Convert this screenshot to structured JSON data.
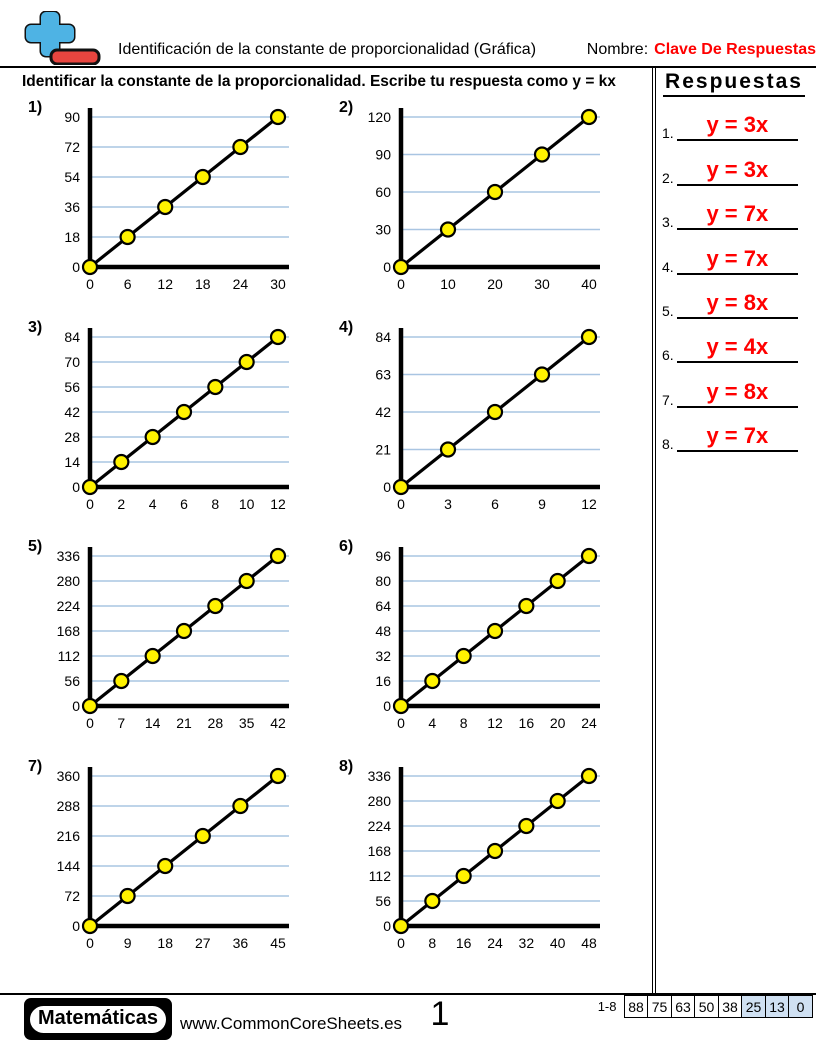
{
  "header": {
    "title": "Identificación de la constante de proporcionalidad (Gráfica)",
    "name_label": "Nombre:",
    "name_value": "Clave De Respuestas",
    "name_value_color": "#ff0000"
  },
  "instruction": "Identificar la constante de la proporcionalidad. Escribe tu respuesta como y = kx",
  "answers": {
    "heading": "Respuestas",
    "color": "#ff0000",
    "items": [
      {
        "number": "1.",
        "value": "y = 3x"
      },
      {
        "number": "2.",
        "value": "y = 3x"
      },
      {
        "number": "3.",
        "value": "y = 7x"
      },
      {
        "number": "4.",
        "value": "y = 7x"
      },
      {
        "number": "5.",
        "value": "y = 8x"
      },
      {
        "number": "6.",
        "value": "y = 4x"
      },
      {
        "number": "7.",
        "value": "y = 8x"
      },
      {
        "number": "8.",
        "value": "y = 7x"
      }
    ]
  },
  "chart_data": [
    {
      "type": "line",
      "number": "1)",
      "k": 3,
      "x": [
        0,
        6,
        12,
        18,
        24,
        30
      ],
      "y": [
        0,
        18,
        36,
        54,
        72,
        90
      ],
      "x_ticks": [
        0,
        6,
        12,
        18,
        24,
        30
      ],
      "y_ticks": [
        0,
        18,
        36,
        54,
        72,
        90
      ],
      "xlim": [
        0,
        30
      ],
      "ylim": [
        0,
        90
      ],
      "grid": "horizontal"
    },
    {
      "type": "line",
      "number": "2)",
      "k": 3,
      "x": [
        0,
        10,
        20,
        30,
        40
      ],
      "y": [
        0,
        30,
        60,
        90,
        120
      ],
      "x_ticks": [
        0,
        10,
        20,
        30,
        40
      ],
      "y_ticks": [
        0,
        30,
        60,
        90,
        120
      ],
      "xlim": [
        0,
        40
      ],
      "ylim": [
        0,
        120
      ],
      "grid": "horizontal"
    },
    {
      "type": "line",
      "number": "3)",
      "k": 7,
      "x": [
        0,
        2,
        4,
        6,
        8,
        10,
        12
      ],
      "y": [
        0,
        14,
        28,
        42,
        56,
        70,
        84
      ],
      "x_ticks": [
        0,
        2,
        4,
        6,
        8,
        10,
        12
      ],
      "y_ticks": [
        0,
        14,
        28,
        42,
        56,
        70,
        84
      ],
      "xlim": [
        0,
        12
      ],
      "ylim": [
        0,
        84
      ],
      "grid": "horizontal"
    },
    {
      "type": "line",
      "number": "4)",
      "k": 7,
      "x": [
        0,
        3,
        6,
        9,
        12
      ],
      "y": [
        0,
        21,
        42,
        63,
        84
      ],
      "x_ticks": [
        0,
        3,
        6,
        9,
        12
      ],
      "y_ticks": [
        0,
        21,
        42,
        63,
        84
      ],
      "xlim": [
        0,
        12
      ],
      "ylim": [
        0,
        84
      ],
      "grid": "horizontal"
    },
    {
      "type": "line",
      "number": "5)",
      "k": 8,
      "x": [
        0,
        7,
        14,
        21,
        28,
        35,
        42
      ],
      "y": [
        0,
        56,
        112,
        168,
        224,
        280,
        336
      ],
      "x_ticks": [
        0,
        7,
        14,
        21,
        28,
        35,
        42
      ],
      "y_ticks": [
        0,
        56,
        112,
        168,
        224,
        280,
        336
      ],
      "xlim": [
        0,
        42
      ],
      "ylim": [
        0,
        336
      ],
      "grid": "horizontal"
    },
    {
      "type": "line",
      "number": "6)",
      "k": 4,
      "x": [
        0,
        4,
        8,
        12,
        16,
        20,
        24
      ],
      "y": [
        0,
        16,
        32,
        48,
        64,
        80,
        96
      ],
      "x_ticks": [
        0,
        4,
        8,
        12,
        16,
        20,
        24
      ],
      "y_ticks": [
        0,
        16,
        32,
        48,
        64,
        80,
        96
      ],
      "xlim": [
        0,
        24
      ],
      "ylim": [
        0,
        96
      ],
      "grid": "horizontal"
    },
    {
      "type": "line",
      "number": "7)",
      "k": 8,
      "x": [
        0,
        9,
        18,
        27,
        36,
        45
      ],
      "y": [
        0,
        72,
        144,
        216,
        288,
        360
      ],
      "x_ticks": [
        0,
        9,
        18,
        27,
        36,
        45
      ],
      "y_ticks": [
        0,
        72,
        144,
        216,
        288,
        360
      ],
      "xlim": [
        0,
        45
      ],
      "ylim": [
        0,
        360
      ],
      "grid": "horizontal"
    },
    {
      "type": "line",
      "number": "8)",
      "k": 7,
      "x": [
        0,
        8,
        16,
        24,
        32,
        40,
        48
      ],
      "y": [
        0,
        56,
        112,
        168,
        224,
        280,
        336
      ],
      "x_ticks": [
        0,
        8,
        16,
        24,
        32,
        40,
        48
      ],
      "y_ticks": [
        0,
        56,
        112,
        168,
        224,
        280,
        336
      ],
      "xlim": [
        0,
        48
      ],
      "ylim": [
        0,
        336
      ],
      "grid": "horizontal"
    }
  ],
  "style": {
    "grid_color": "#a9c5e2",
    "dot_fill": "#fff200",
    "dot_stroke": "#000000",
    "line_color": "#000000",
    "axis_color": "#000000",
    "logo_plus_color": "#4eb3e4",
    "logo_minus_color": "#e8453f"
  },
  "footer": {
    "brand": "Matemáticas",
    "website": "www.CommonCoreSheets.es",
    "page_number": "1",
    "score_label": "1-8",
    "score_values": [
      "88",
      "75",
      "63",
      "50",
      "38",
      "25",
      "13",
      "0"
    ],
    "score_highlight_from": 5,
    "score_highlight_color": "#cfe0f2"
  }
}
